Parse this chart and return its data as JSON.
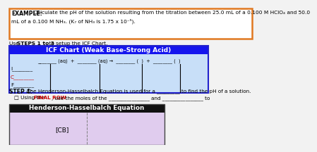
{
  "bg_color": "#f2f2f2",
  "example_border_color": "#e07820",
  "example_bold": "EXAMPLE:",
  "example_line1": " Calculate the pH of the solution resulting from the titration between 25.0 mL of a 0.100 M HClO₄ and 50.0",
  "example_line2": "mL of a 0.100 M NH₃. (K₇ of NH₃ is 1.75 x 10⁻⁵).",
  "steps_prefix": "Use ",
  "steps_bold": "STEPS 1 to 3",
  "steps_suffix": " to setup the ICF Chart.",
  "icf_header": "ICF Chart (Weak Base-Strong Acid)",
  "icf_header_bg": "#1515ee",
  "icf_header_fg": "#ffffff",
  "icf_body_bg": "#c8dff8",
  "icf_border_color": "#2222cc",
  "icf_equation": "________ (aq)  +  ________ (aq) →  ________ (  )  +  ________ (  )",
  "icf_row_I": "I________",
  "icf_row_C": "C________",
  "icf_row_F": "F________",
  "icf_row_C_color": "#cc0000",
  "step4_bold": "STEP 4:",
  "step4_text": " The Henderson-Hasselbalch Equation is used for a _________ to find the pH of a solution.",
  "step4b_pre": "□ Using the ",
  "step4b_red": "FINAL ROW",
  "step4b_post": ", use the moles of the ________________ and ________________ to",
  "hh_header": "Henderson-Hasselbalch Equation",
  "hh_header_bg": "#111111",
  "hh_header_fg": "#ffffff",
  "hh_body_bg": "#e0ccee",
  "hh_cb_text": "[CB]",
  "white": "#ffffff",
  "black": "#000000",
  "red": "#cc0000"
}
